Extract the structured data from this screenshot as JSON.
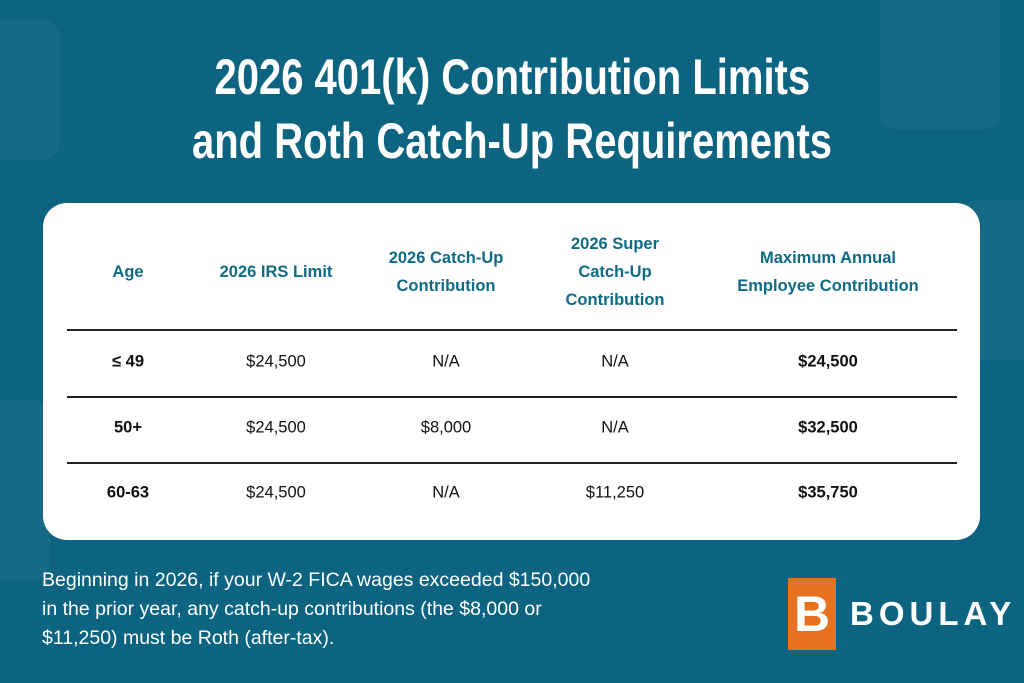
{
  "title": {
    "line1": "2026 401(k) Contribution Limits",
    "line2": "and Roth Catch-Up Requirements"
  },
  "table": {
    "headers": [
      [
        "Age"
      ],
      [
        "2026 IRS Limit"
      ],
      [
        "2026 Catch-Up",
        "Contribution"
      ],
      [
        "2026 Super",
        "Catch-Up",
        "Contribution"
      ],
      [
        "Maximum Annual",
        "Employee Contribution"
      ]
    ],
    "rows": [
      [
        "≤ 49",
        "$24,500",
        "N/A",
        "N/A",
        "$24,500"
      ],
      [
        "50+",
        "$24,500",
        "$8,000",
        "N/A",
        "$32,500"
      ],
      [
        "60-63",
        "$24,500",
        "N/A",
        "$11,250",
        "$35,750"
      ]
    ]
  },
  "note": {
    "lines": [
      "Beginning in 2026, if your W-2 FICA wages exceeded $150,000",
      "in the prior year, any catch-up contributions (the $8,000 or",
      "$11,250) must be Roth (after-tax)."
    ]
  },
  "logo": {
    "mark": "B",
    "name": "BOULAY"
  },
  "colors": {
    "background": "#0c6480",
    "header_text": "#0f6a85",
    "logo_orange": "#e6711e"
  }
}
